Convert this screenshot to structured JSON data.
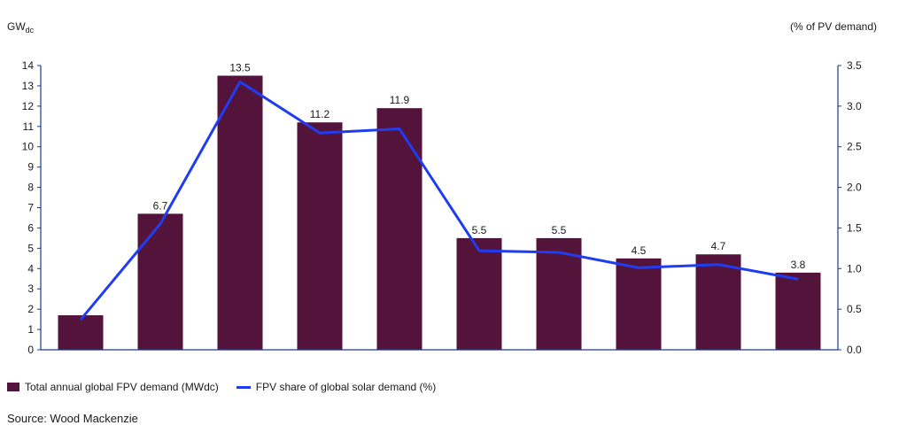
{
  "chart_data": {
    "type": "bar",
    "left_axis": {
      "unit_main": "GW",
      "unit_sub": "dc",
      "ylim": [
        0,
        14
      ],
      "ticks": [
        "0",
        "1",
        "2",
        "3",
        "4",
        "5",
        "6",
        "7",
        "8",
        "9",
        "10",
        "11",
        "12",
        "13",
        "14"
      ]
    },
    "right_axis": {
      "unit": "(% of PV demand)",
      "ylim": [
        0,
        3.5
      ],
      "ticks": [
        "0.0",
        "0.5",
        "1.0",
        "1.5",
        "2.0",
        "2.5",
        "3.0",
        "3.5"
      ]
    },
    "series": [
      {
        "name": "Total annual global FPV demand (MWdc)",
        "type": "bar",
        "axis": "left",
        "values": [
          1.7,
          6.7,
          13.5,
          11.2,
          11.9,
          5.5,
          5.5,
          4.5,
          4.7,
          3.8
        ],
        "labels": [
          "",
          "6.7",
          "13.5",
          "11.2",
          "11.9",
          "5.5",
          "5.5",
          "4.5",
          "4.7",
          "3.8"
        ]
      },
      {
        "name": "FPV share of global solar demand (%)",
        "type": "line",
        "axis": "right",
        "values": [
          0.37,
          1.55,
          3.3,
          2.67,
          2.72,
          1.22,
          1.2,
          1.01,
          1.05,
          0.87
        ]
      }
    ],
    "grid": false,
    "legend_position": "bottom-left"
  },
  "colors": {
    "bar": "#54133a",
    "line": "#1f3cf0",
    "axis": "#1f3a8a"
  },
  "source": "Source: Wood Mackenzie"
}
